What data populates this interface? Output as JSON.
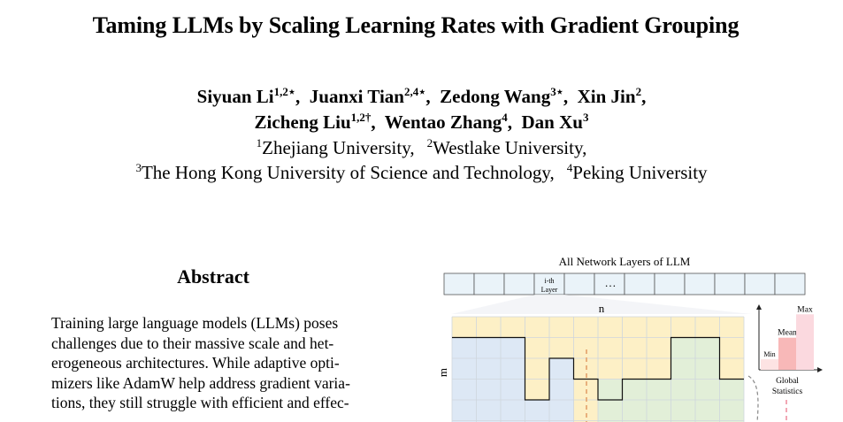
{
  "paper": {
    "title": "Taming LLMs by Scaling Learning Rates with Gradient Grouping",
    "authors": {
      "line1": [
        {
          "name": "Siyuan Li",
          "marks": "1,2⋆",
          "sep": ",  "
        },
        {
          "name": "Juanxi Tian",
          "marks": "2,4⋆",
          "sep": ",  "
        },
        {
          "name": "Zedong Wang",
          "marks": "3⋆",
          "sep": ",  "
        },
        {
          "name": "Xin Jin",
          "marks": "2",
          "sep": ","
        }
      ],
      "line2": [
        {
          "name": "Zicheng Liu",
          "marks": "1,2†",
          "sep": ",  "
        },
        {
          "name": "Wentao Zhang",
          "marks": "4",
          "sep": ",  "
        },
        {
          "name": "Dan Xu",
          "marks": "3",
          "sep": ""
        }
      ]
    },
    "affiliations": {
      "line1": [
        {
          "mark": "1",
          "name": "Zhejiang University,"
        },
        {
          "mark": "2",
          "name": "Westlake University,"
        }
      ],
      "line2": [
        {
          "mark": "3",
          "name": "The Hong Kong University of Science and Technology,"
        },
        {
          "mark": "4",
          "name": "Peking University"
        }
      ]
    },
    "abstract": {
      "heading": "Abstract",
      "lines": [
        "Training large language models (LLMs) poses",
        "challenges due to their massive scale and het-",
        "erogeneous architectures. While adaptive opti-",
        "mizers like AdamW help address gradient varia-",
        "tions, they still struggle with efficient and effec-"
      ]
    },
    "figure": {
      "caption_top": "All Network Layers of LLM",
      "layer_label_line1": "i-th",
      "layer_label_line2": "Layer",
      "ellipsis": "…",
      "dim_n": "n",
      "dim_m": "m",
      "stats": {
        "bar_labels": [
          "Min",
          "Mean",
          "Max"
        ],
        "bar_levels": [
          0.18,
          0.55,
          0.95
        ],
        "label_line1": "Global",
        "label_line2": "Statistics"
      },
      "colors": {
        "yellow": "#fdf0c6",
        "blue": "#dde8f5",
        "green": "#e2efd8",
        "orange_dash": "#e8b07c",
        "layer_fill": "#eaf3f9",
        "min_bar": "#fde3e3",
        "mean_bar": "#f8b8b8",
        "max_bar": "#fbd9df",
        "pink_dash": "#f2a7b4"
      }
    }
  }
}
